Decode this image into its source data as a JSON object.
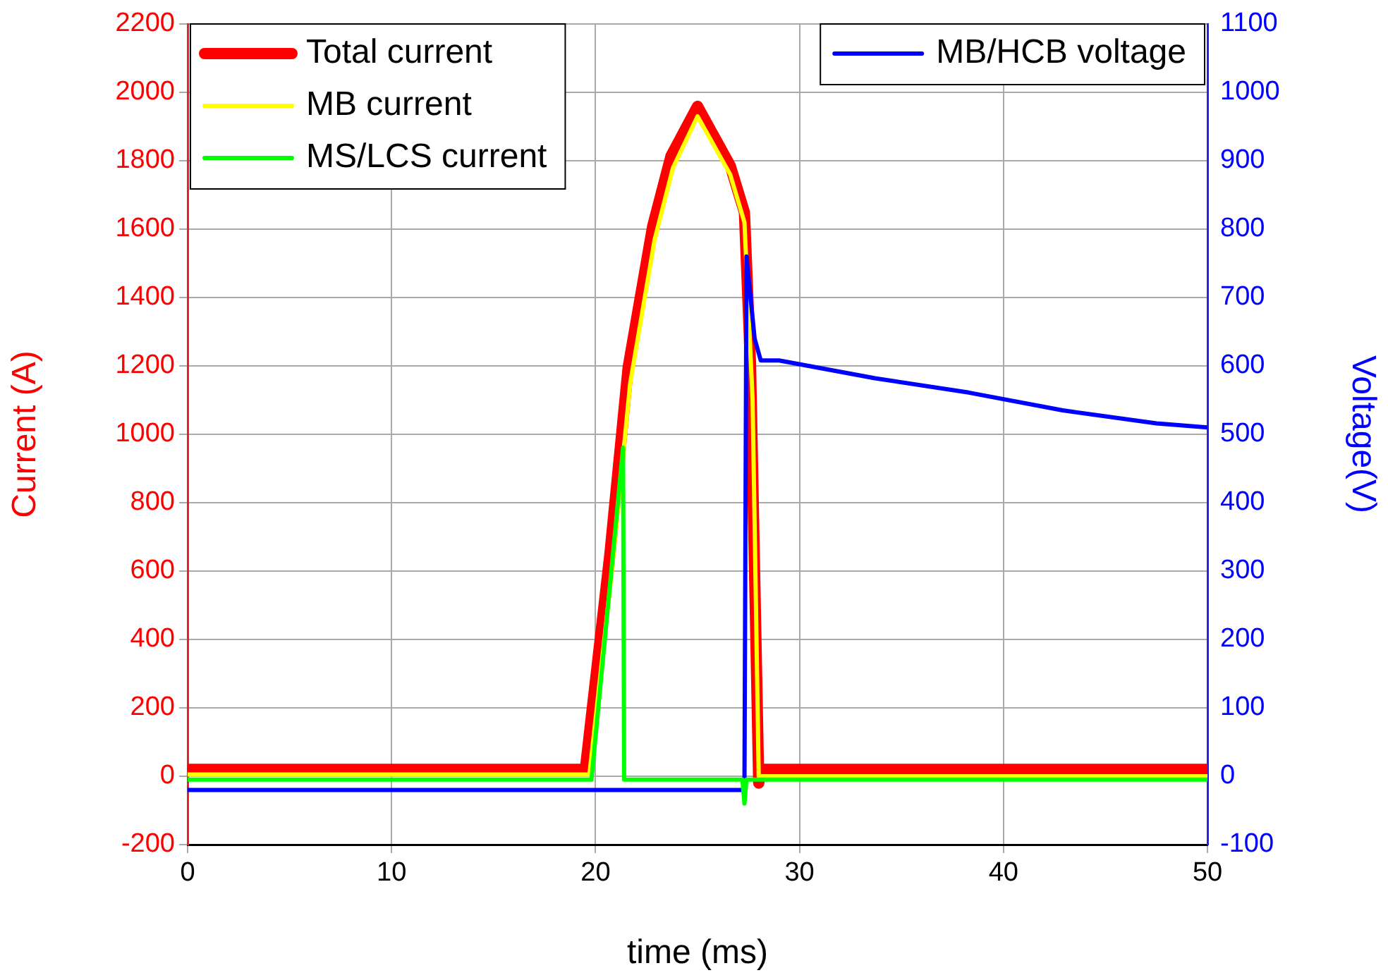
{
  "chart_data": {
    "type": "line",
    "xlabel": "time (ms)",
    "ylabel": "Current (A)",
    "y2label": "Voltage(V)",
    "xlim": [
      0,
      50
    ],
    "xticks": [
      0,
      10,
      20,
      30,
      40,
      50
    ],
    "ylim": [
      -200,
      2200
    ],
    "yticks": [
      -200,
      0,
      200,
      400,
      600,
      800,
      1000,
      1200,
      1400,
      1600,
      1800,
      2000,
      2200
    ],
    "y2lim": [
      -100,
      1100
    ],
    "y2ticks": [
      -100,
      0,
      100,
      200,
      300,
      400,
      500,
      600,
      700,
      800,
      900,
      1000,
      1100
    ],
    "grid": true,
    "legend": "top",
    "marker": "none",
    "line_style": "solid",
    "series": [
      {
        "name": "Total current",
        "color": "#ff0000",
        "x": [
          0,
          19.5,
          20.7,
          21.6,
          22.8,
          23.7,
          25.0,
          26.6,
          27.3,
          27.6,
          28.0,
          28.1,
          50
        ],
        "values": [
          20,
          20,
          647,
          1196,
          1608,
          1814,
          1959,
          1786,
          1649,
          1200,
          -20,
          20,
          20
        ]
      },
      {
        "name": "MB current",
        "color": "#ffff00",
        "x": [
          0,
          19.7,
          20.8,
          21.7,
          22.9,
          23.8,
          25.0,
          26.6,
          27.3,
          27.7,
          28.0,
          50
        ],
        "values": [
          5,
          5,
          600,
          1150,
          1570,
          1780,
          1930,
          1760,
          1620,
          1100,
          0,
          0
        ]
      },
      {
        "name": "MB/HCB voltage",
        "color": "#0000ff",
        "axis": "y2",
        "x": [
          0,
          27.3,
          27.4,
          27.8,
          28.1,
          29.0,
          33.7,
          38.3,
          42.9,
          47.5,
          50
        ],
        "values": [
          -20,
          -20,
          760,
          640,
          608,
          608,
          582,
          561,
          535,
          516,
          510
        ]
      },
      {
        "name": "MS/LCS current",
        "color": "#00ff00",
        "x": [
          0,
          19.8,
          21.35,
          21.4,
          27.2,
          27.3,
          27.4,
          50
        ],
        "values": [
          -10,
          -10,
          961,
          -10,
          -10,
          -80,
          -10,
          -10
        ]
      }
    ]
  }
}
